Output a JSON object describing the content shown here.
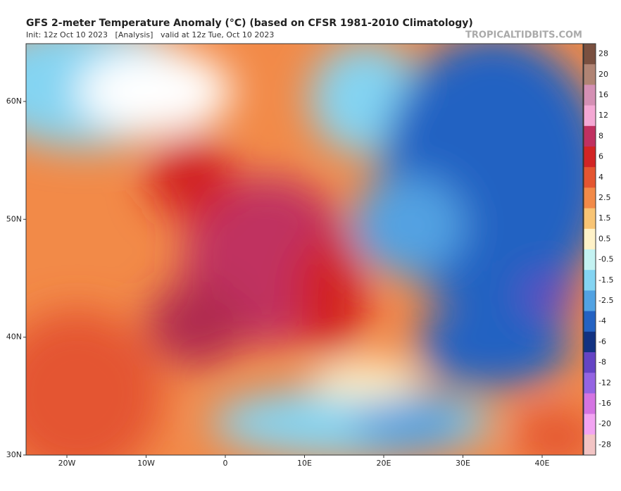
{
  "header": {
    "title": "GFS 2-meter Temperature Anomaly (°C) (based on CFSR 1981-2010 Climatology)",
    "subtitle": "Init: 12z Oct 10 2023   [Analysis]   valid at 12z Tue, Oct 10 2023",
    "source": "TROPICALTIDBITS.COM"
  },
  "map": {
    "lat_labels": [
      "60N",
      "50N",
      "40N",
      "30N"
    ],
    "lon_labels": [
      "20W",
      "10W",
      "0",
      "10E",
      "20E",
      "30E",
      "40E"
    ]
  },
  "colorbar": {
    "labels": [
      "28",
      "20",
      "16",
      "12",
      "8",
      "6",
      "4",
      "2.5",
      "1.5",
      "0.5",
      "-0.5",
      "-1.5",
      "-2.5",
      "-4",
      "-6",
      "-8",
      "-12",
      "-16",
      "-20",
      "-28"
    ],
    "colors": [
      "#7a5040",
      "#b08474",
      "#d490b4",
      "#f4a8d4",
      "#c03060",
      "#d22424",
      "#e45530",
      "#f28a48",
      "#f8c474",
      "#fff2c8",
      "#c4f2f2",
      "#84d4f2",
      "#52a2e2",
      "#2462c2",
      "#123282",
      "#6444c4",
      "#9464e2",
      "#d474e2",
      "#f2a4f2",
      "#f2c4c4"
    ]
  }
}
